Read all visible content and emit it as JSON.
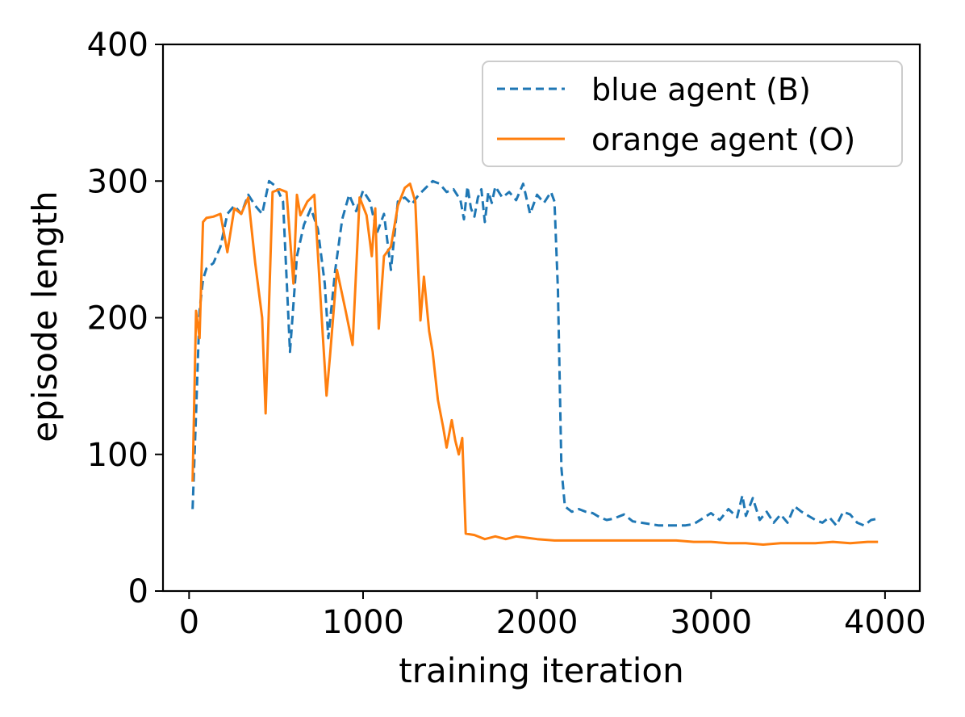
{
  "chart_data": {
    "type": "line",
    "xlabel": "training iteration",
    "ylabel": "episode length",
    "xlim": [
      -150,
      4200
    ],
    "ylim": [
      0,
      400
    ],
    "xticks": [
      0,
      1000,
      2000,
      3000,
      4000
    ],
    "yticks": [
      0,
      100,
      200,
      300,
      400
    ],
    "xtick_labels": [
      "0",
      "1000",
      "2000",
      "3000",
      "4000"
    ],
    "ytick_labels": [
      "0",
      "100",
      "200",
      "300",
      "400"
    ],
    "grid": false,
    "legend_position": "top-right",
    "series": [
      {
        "name": "blue agent (B)",
        "color": "#1f77b4",
        "style": "dashed",
        "points": [
          [
            20,
            60
          ],
          [
            40,
            130
          ],
          [
            60,
            205
          ],
          [
            80,
            228
          ],
          [
            100,
            236
          ],
          [
            140,
            240
          ],
          [
            180,
            252
          ],
          [
            220,
            276
          ],
          [
            260,
            282
          ],
          [
            300,
            276
          ],
          [
            340,
            290
          ],
          [
            380,
            282
          ],
          [
            420,
            276
          ],
          [
            460,
            300
          ],
          [
            500,
            296
          ],
          [
            540,
            285
          ],
          [
            580,
            175
          ],
          [
            620,
            245
          ],
          [
            660,
            268
          ],
          [
            700,
            280
          ],
          [
            740,
            265
          ],
          [
            780,
            225
          ],
          [
            800,
            185
          ],
          [
            840,
            235
          ],
          [
            880,
            272
          ],
          [
            920,
            290
          ],
          [
            960,
            278
          ],
          [
            1000,
            293
          ],
          [
            1040,
            285
          ],
          [
            1080,
            262
          ],
          [
            1120,
            276
          ],
          [
            1160,
            235
          ],
          [
            1200,
            285
          ],
          [
            1240,
            288
          ],
          [
            1280,
            283
          ],
          [
            1320,
            290
          ],
          [
            1360,
            295
          ],
          [
            1400,
            300
          ],
          [
            1440,
            298
          ],
          [
            1480,
            292
          ],
          [
            1520,
            294
          ],
          [
            1560,
            286
          ],
          [
            1580,
            272
          ],
          [
            1600,
            296
          ],
          [
            1620,
            280
          ],
          [
            1640,
            274
          ],
          [
            1660,
            288
          ],
          [
            1680,
            294
          ],
          [
            1700,
            270
          ],
          [
            1720,
            292
          ],
          [
            1740,
            284
          ],
          [
            1760,
            296
          ],
          [
            1800,
            288
          ],
          [
            1840,
            292
          ],
          [
            1880,
            286
          ],
          [
            1920,
            298
          ],
          [
            1960,
            276
          ],
          [
            2000,
            290
          ],
          [
            2040,
            284
          ],
          [
            2080,
            292
          ],
          [
            2100,
            285
          ],
          [
            2120,
            220
          ],
          [
            2140,
            90
          ],
          [
            2160,
            62
          ],
          [
            2200,
            58
          ],
          [
            2240,
            60
          ],
          [
            2280,
            58
          ],
          [
            2320,
            57
          ],
          [
            2360,
            54
          ],
          [
            2400,
            52
          ],
          [
            2440,
            53
          ],
          [
            2500,
            56
          ],
          [
            2550,
            51
          ],
          [
            2600,
            50
          ],
          [
            2650,
            49
          ],
          [
            2700,
            48
          ],
          [
            2750,
            48
          ],
          [
            2800,
            48
          ],
          [
            2850,
            48
          ],
          [
            2900,
            49
          ],
          [
            2950,
            53
          ],
          [
            3000,
            57
          ],
          [
            3050,
            52
          ],
          [
            3100,
            60
          ],
          [
            3150,
            54
          ],
          [
            3180,
            70
          ],
          [
            3200,
            55
          ],
          [
            3240,
            68
          ],
          [
            3280,
            52
          ],
          [
            3320,
            58
          ],
          [
            3360,
            50
          ],
          [
            3400,
            56
          ],
          [
            3440,
            50
          ],
          [
            3480,
            62
          ],
          [
            3520,
            58
          ],
          [
            3560,
            55
          ],
          [
            3600,
            52
          ],
          [
            3640,
            50
          ],
          [
            3680,
            54
          ],
          [
            3720,
            48
          ],
          [
            3760,
            58
          ],
          [
            3800,
            56
          ],
          [
            3840,
            50
          ],
          [
            3880,
            48
          ],
          [
            3920,
            52
          ],
          [
            3960,
            53
          ]
        ]
      },
      {
        "name": "orange agent (O)",
        "color": "#ff7f0e",
        "style": "solid",
        "points": [
          [
            20,
            80
          ],
          [
            40,
            205
          ],
          [
            60,
            185
          ],
          [
            80,
            270
          ],
          [
            100,
            273
          ],
          [
            140,
            274
          ],
          [
            180,
            276
          ],
          [
            220,
            248
          ],
          [
            260,
            280
          ],
          [
            300,
            276
          ],
          [
            340,
            288
          ],
          [
            380,
            240
          ],
          [
            420,
            200
          ],
          [
            440,
            130
          ],
          [
            480,
            292
          ],
          [
            520,
            294
          ],
          [
            560,
            292
          ],
          [
            600,
            225
          ],
          [
            620,
            290
          ],
          [
            640,
            275
          ],
          [
            680,
            285
          ],
          [
            720,
            290
          ],
          [
            760,
            205
          ],
          [
            790,
            143
          ],
          [
            810,
            172
          ],
          [
            850,
            235
          ],
          [
            900,
            205
          ],
          [
            940,
            180
          ],
          [
            980,
            288
          ],
          [
            1020,
            275
          ],
          [
            1050,
            245
          ],
          [
            1070,
            280
          ],
          [
            1090,
            192
          ],
          [
            1120,
            245
          ],
          [
            1160,
            252
          ],
          [
            1200,
            282
          ],
          [
            1240,
            295
          ],
          [
            1270,
            298
          ],
          [
            1300,
            285
          ],
          [
            1330,
            198
          ],
          [
            1350,
            230
          ],
          [
            1380,
            190
          ],
          [
            1400,
            175
          ],
          [
            1430,
            140
          ],
          [
            1460,
            120
          ],
          [
            1480,
            105
          ],
          [
            1510,
            125
          ],
          [
            1530,
            110
          ],
          [
            1550,
            100
          ],
          [
            1570,
            112
          ],
          [
            1590,
            42
          ],
          [
            1640,
            41
          ],
          [
            1700,
            38
          ],
          [
            1760,
            40
          ],
          [
            1820,
            38
          ],
          [
            1880,
            40
          ],
          [
            1940,
            39
          ],
          [
            2000,
            38
          ],
          [
            2100,
            37
          ],
          [
            2200,
            37
          ],
          [
            2300,
            37
          ],
          [
            2400,
            37
          ],
          [
            2500,
            37
          ],
          [
            2600,
            37
          ],
          [
            2700,
            37
          ],
          [
            2800,
            37
          ],
          [
            2900,
            36
          ],
          [
            3000,
            36
          ],
          [
            3100,
            35
          ],
          [
            3200,
            35
          ],
          [
            3300,
            34
          ],
          [
            3400,
            35
          ],
          [
            3500,
            35
          ],
          [
            3600,
            35
          ],
          [
            3700,
            36
          ],
          [
            3800,
            35
          ],
          [
            3900,
            36
          ],
          [
            3960,
            36
          ]
        ]
      }
    ]
  }
}
